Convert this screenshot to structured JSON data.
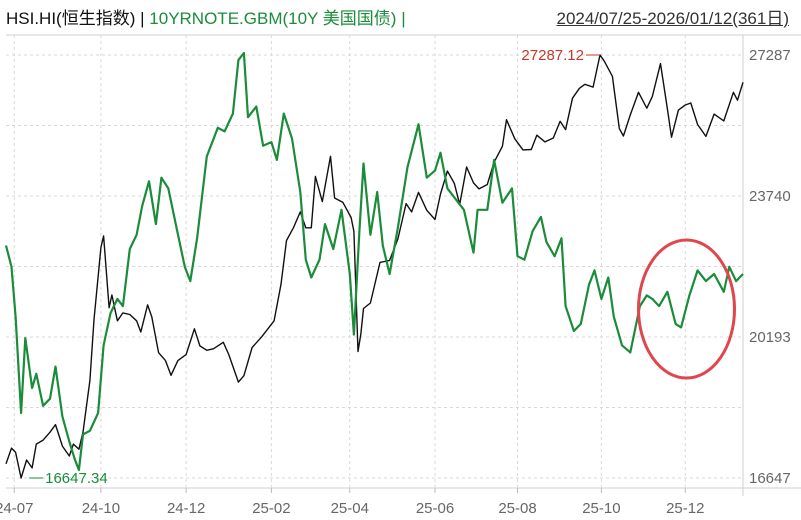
{
  "header": {
    "symbol1": "HSI.HI(恒生指数)",
    "sep1": "|",
    "symbol2": "10YRNOTE.GBM(10Y 美国国债)",
    "sep2": "|",
    "range": "2024/07/25-2026/01/12(361日)"
  },
  "colors": {
    "hsi": "#111111",
    "bond": "#1a8c3a",
    "grid": "#d9d9d9",
    "axis_text": "#666666",
    "annotation_max": "#c0392b",
    "annotation_min": "#1a8c3a",
    "highlight_circle": "#e0474c"
  },
  "chart_data": {
    "type": "line",
    "x_type": "date",
    "x_range": [
      "2024-07-25",
      "2026-01-12"
    ],
    "x_ticks": [
      "24-07",
      "24-10",
      "24-12",
      "25-02",
      "25-04",
      "25-06",
      "25-08",
      "25-10",
      "25-12"
    ],
    "ylim": [
      16647,
      27287
    ],
    "y_ticks": [
      "27287",
      "23740",
      "20193",
      "16647"
    ],
    "grid": true,
    "annotations": [
      {
        "label": "27287.12",
        "series": "HSI",
        "x": "2025-09-30",
        "y": 27287.12
      },
      {
        "label": "16647.34",
        "series": "HSI",
        "x": "2024-08-05",
        "y": 16647.34
      }
    ],
    "series": [
      {
        "name": "HSI.HI(恒生指数)",
        "color": "#111111",
        "points": [
          [
            "2024-07-25",
            17005
          ],
          [
            "2024-07-29",
            17400
          ],
          [
            "2024-08-01",
            17290
          ],
          [
            "2024-08-05",
            16647
          ],
          [
            "2024-08-09",
            17100
          ],
          [
            "2024-08-13",
            16900
          ],
          [
            "2024-08-16",
            17500
          ],
          [
            "2024-08-21",
            17600
          ],
          [
            "2024-08-26",
            17800
          ],
          [
            "2024-08-30",
            17990
          ],
          [
            "2024-09-04",
            17450
          ],
          [
            "2024-09-09",
            17200
          ],
          [
            "2024-09-12",
            17500
          ],
          [
            "2024-09-16",
            17370
          ],
          [
            "2024-09-19",
            17800
          ],
          [
            "2024-09-24",
            19100
          ],
          [
            "2024-09-27",
            20630
          ],
          [
            "2024-10-02",
            22443
          ],
          [
            "2024-10-04",
            22736
          ],
          [
            "2024-10-08",
            20930
          ],
          [
            "2024-10-10",
            21250
          ],
          [
            "2024-10-14",
            20600
          ],
          [
            "2024-10-18",
            20800
          ],
          [
            "2024-10-23",
            20760
          ],
          [
            "2024-10-28",
            20600
          ],
          [
            "2024-10-31",
            20320
          ],
          [
            "2024-11-05",
            21000
          ],
          [
            "2024-11-08",
            20700
          ],
          [
            "2024-11-13",
            19800
          ],
          [
            "2024-11-18",
            19600
          ],
          [
            "2024-11-22",
            19230
          ],
          [
            "2024-11-27",
            19600
          ],
          [
            "2024-12-03",
            19750
          ],
          [
            "2024-12-09",
            20400
          ],
          [
            "2024-12-13",
            19970
          ],
          [
            "2024-12-18",
            19860
          ],
          [
            "2024-12-23",
            19900
          ],
          [
            "2024-12-30",
            20060
          ],
          [
            "2025-01-03",
            19750
          ],
          [
            "2025-01-10",
            19060
          ],
          [
            "2025-01-14",
            19220
          ],
          [
            "2025-01-20",
            19930
          ],
          [
            "2025-01-27",
            20200
          ],
          [
            "2025-02-05",
            20600
          ],
          [
            "2025-02-10",
            21520
          ],
          [
            "2025-02-14",
            22620
          ],
          [
            "2025-02-19",
            22940
          ],
          [
            "2025-02-24",
            23340
          ],
          [
            "2025-02-28",
            22940
          ],
          [
            "2025-03-04",
            22940
          ],
          [
            "2025-03-07",
            24230
          ],
          [
            "2025-03-12",
            23600
          ],
          [
            "2025-03-18",
            24740
          ],
          [
            "2025-03-21",
            23690
          ],
          [
            "2025-03-27",
            23580
          ],
          [
            "2025-04-02",
            23200
          ],
          [
            "2025-04-04",
            22850
          ],
          [
            "2025-04-07",
            19830
          ],
          [
            "2025-04-09",
            20260
          ],
          [
            "2025-04-11",
            20910
          ],
          [
            "2025-04-16",
            21050
          ],
          [
            "2025-04-23",
            22070
          ],
          [
            "2025-04-30",
            22120
          ],
          [
            "2025-05-06",
            22660
          ],
          [
            "2025-05-12",
            23550
          ],
          [
            "2025-05-16",
            23340
          ],
          [
            "2025-05-21",
            23830
          ],
          [
            "2025-05-27",
            23380
          ],
          [
            "2025-06-02",
            23150
          ],
          [
            "2025-06-06",
            23790
          ],
          [
            "2025-06-11",
            24370
          ],
          [
            "2025-06-16",
            24060
          ],
          [
            "2025-06-20",
            23530
          ],
          [
            "2025-06-25",
            24470
          ],
          [
            "2025-06-30",
            24070
          ],
          [
            "2025-07-04",
            23920
          ],
          [
            "2025-07-10",
            24030
          ],
          [
            "2025-07-15",
            24590
          ],
          [
            "2025-07-21",
            24990
          ],
          [
            "2025-07-24",
            25660
          ],
          [
            "2025-07-30",
            25180
          ],
          [
            "2025-08-05",
            24900
          ],
          [
            "2025-08-11",
            24910
          ],
          [
            "2025-08-15",
            25270
          ],
          [
            "2025-08-21",
            25100
          ],
          [
            "2025-08-27",
            25200
          ],
          [
            "2025-09-01",
            25620
          ],
          [
            "2025-09-05",
            25410
          ],
          [
            "2025-09-10",
            26200
          ],
          [
            "2025-09-15",
            26450
          ],
          [
            "2025-09-19",
            26550
          ],
          [
            "2025-09-25",
            26480
          ],
          [
            "2025-09-30",
            27287
          ],
          [
            "2025-10-03",
            27140
          ],
          [
            "2025-10-09",
            26750
          ],
          [
            "2025-10-14",
            25440
          ],
          [
            "2025-10-17",
            25250
          ],
          [
            "2025-10-22",
            25780
          ],
          [
            "2025-10-28",
            26350
          ],
          [
            "2025-11-03",
            25950
          ],
          [
            "2025-11-07",
            26240
          ],
          [
            "2025-11-13",
            27070
          ],
          [
            "2025-11-18",
            25930
          ],
          [
            "2025-11-21",
            25220
          ],
          [
            "2025-11-26",
            25900
          ],
          [
            "2025-12-01",
            26030
          ],
          [
            "2025-12-05",
            26080
          ],
          [
            "2025-12-10",
            25540
          ],
          [
            "2025-12-16",
            25240
          ],
          [
            "2025-12-22",
            25800
          ],
          [
            "2025-12-29",
            25630
          ],
          [
            "2026-01-05",
            26350
          ],
          [
            "2026-01-08",
            26150
          ],
          [
            "2026-01-12",
            26600
          ]
        ]
      },
      {
        "name": "10YRNOTE.GBM(10Y 美国国债)",
        "color": "#1a8c3a",
        "points": [
          [
            "2024-07-25",
            4.25
          ],
          [
            "2024-07-29",
            4.19
          ],
          [
            "2024-08-01",
            4.05
          ],
          [
            "2024-08-05",
            3.78
          ],
          [
            "2024-08-08",
            3.99
          ],
          [
            "2024-08-13",
            3.85
          ],
          [
            "2024-08-16",
            3.89
          ],
          [
            "2024-08-21",
            3.8
          ],
          [
            "2024-08-26",
            3.82
          ],
          [
            "2024-08-30",
            3.91
          ],
          [
            "2024-09-04",
            3.77
          ],
          [
            "2024-09-09",
            3.7
          ],
          [
            "2024-09-13",
            3.65
          ],
          [
            "2024-09-16",
            3.62
          ],
          [
            "2024-09-19",
            3.72
          ],
          [
            "2024-09-24",
            3.73
          ],
          [
            "2024-09-30",
            3.78
          ],
          [
            "2024-10-04",
            3.97
          ],
          [
            "2024-10-09",
            4.06
          ],
          [
            "2024-10-14",
            4.1
          ],
          [
            "2024-10-18",
            4.08
          ],
          [
            "2024-10-23",
            4.24
          ],
          [
            "2024-10-28",
            4.28
          ],
          [
            "2024-11-01",
            4.36
          ],
          [
            "2024-11-06",
            4.43
          ],
          [
            "2024-11-11",
            4.31
          ],
          [
            "2024-11-15",
            4.44
          ],
          [
            "2024-11-20",
            4.41
          ],
          [
            "2024-11-26",
            4.3
          ],
          [
            "2024-12-02",
            4.19
          ],
          [
            "2024-12-06",
            4.15
          ],
          [
            "2024-12-11",
            4.27
          ],
          [
            "2024-12-18",
            4.5
          ],
          [
            "2024-12-26",
            4.58
          ],
          [
            "2024-12-31",
            4.57
          ],
          [
            "2025-01-06",
            4.62
          ],
          [
            "2025-01-10",
            4.77
          ],
          [
            "2025-01-14",
            4.79
          ],
          [
            "2025-01-17",
            4.61
          ],
          [
            "2025-01-23",
            4.64
          ],
          [
            "2025-01-28",
            4.53
          ],
          [
            "2025-02-03",
            4.54
          ],
          [
            "2025-02-07",
            4.49
          ],
          [
            "2025-02-12",
            4.62
          ],
          [
            "2025-02-18",
            4.55
          ],
          [
            "2025-02-24",
            4.4
          ],
          [
            "2025-02-28",
            4.21
          ],
          [
            "2025-03-04",
            4.16
          ],
          [
            "2025-03-10",
            4.21
          ],
          [
            "2025-03-14",
            4.31
          ],
          [
            "2025-03-20",
            4.24
          ],
          [
            "2025-03-26",
            4.35
          ],
          [
            "2025-04-01",
            4.17
          ],
          [
            "2025-04-04",
            4.0
          ],
          [
            "2025-04-08",
            4.29
          ],
          [
            "2025-04-11",
            4.48
          ],
          [
            "2025-04-16",
            4.28
          ],
          [
            "2025-04-21",
            4.4
          ],
          [
            "2025-04-25",
            4.25
          ],
          [
            "2025-04-30",
            4.17
          ],
          [
            "2025-05-06",
            4.3
          ],
          [
            "2025-05-13",
            4.47
          ],
          [
            "2025-05-21",
            4.59
          ],
          [
            "2025-05-27",
            4.44
          ],
          [
            "2025-06-02",
            4.46
          ],
          [
            "2025-06-06",
            4.51
          ],
          [
            "2025-06-11",
            4.41
          ],
          [
            "2025-06-17",
            4.38
          ],
          [
            "2025-06-23",
            4.35
          ],
          [
            "2025-06-30",
            4.23
          ],
          [
            "2025-07-03",
            4.35
          ],
          [
            "2025-07-10",
            4.35
          ],
          [
            "2025-07-15",
            4.49
          ],
          [
            "2025-07-21",
            4.37
          ],
          [
            "2025-07-28",
            4.41
          ],
          [
            "2025-08-01",
            4.22
          ],
          [
            "2025-08-06",
            4.21
          ],
          [
            "2025-08-12",
            4.29
          ],
          [
            "2025-08-18",
            4.33
          ],
          [
            "2025-08-22",
            4.26
          ],
          [
            "2025-08-28",
            4.22
          ],
          [
            "2025-09-02",
            4.27
          ],
          [
            "2025-09-05",
            4.08
          ],
          [
            "2025-09-11",
            4.01
          ],
          [
            "2025-09-16",
            4.03
          ],
          [
            "2025-09-22",
            4.14
          ],
          [
            "2025-09-26",
            4.18
          ],
          [
            "2025-10-01",
            4.1
          ],
          [
            "2025-10-06",
            4.16
          ],
          [
            "2025-10-10",
            4.05
          ],
          [
            "2025-10-16",
            3.97
          ],
          [
            "2025-10-22",
            3.95
          ],
          [
            "2025-10-29",
            4.08
          ],
          [
            "2025-11-03",
            4.11
          ],
          [
            "2025-11-07",
            4.1
          ],
          [
            "2025-11-12",
            4.08
          ],
          [
            "2025-11-18",
            4.12
          ],
          [
            "2025-11-24",
            4.03
          ],
          [
            "2025-11-28",
            4.02
          ],
          [
            "2025-12-04",
            4.11
          ],
          [
            "2025-12-10",
            4.18
          ],
          [
            "2025-12-16",
            4.15
          ],
          [
            "2025-12-22",
            4.17
          ],
          [
            "2025-12-29",
            4.12
          ],
          [
            "2026-01-02",
            4.19
          ],
          [
            "2026-01-07",
            4.15
          ],
          [
            "2026-01-12",
            4.17
          ]
        ]
      }
    ]
  }
}
